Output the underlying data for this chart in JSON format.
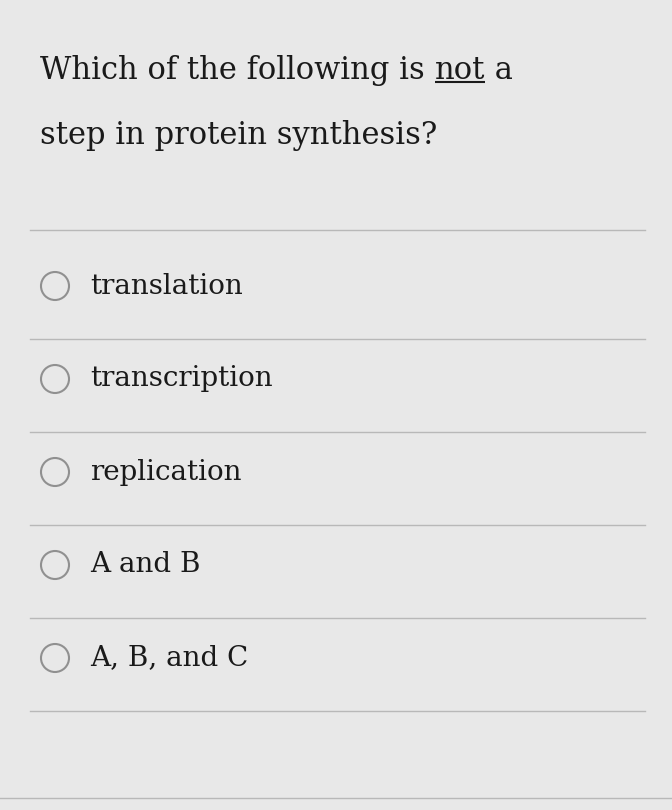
{
  "background_color": "#e8e8e8",
  "text_color": "#1a1a1a",
  "line_color": "#b8b8b8",
  "circle_edge_color": "#909090",
  "circle_fill_color": "#e8e8e8",
  "font_size_question": 22,
  "font_size_options": 20,
  "options": [
    "translation",
    "transcription",
    "replication",
    "A and B",
    "A, B, and C"
  ]
}
